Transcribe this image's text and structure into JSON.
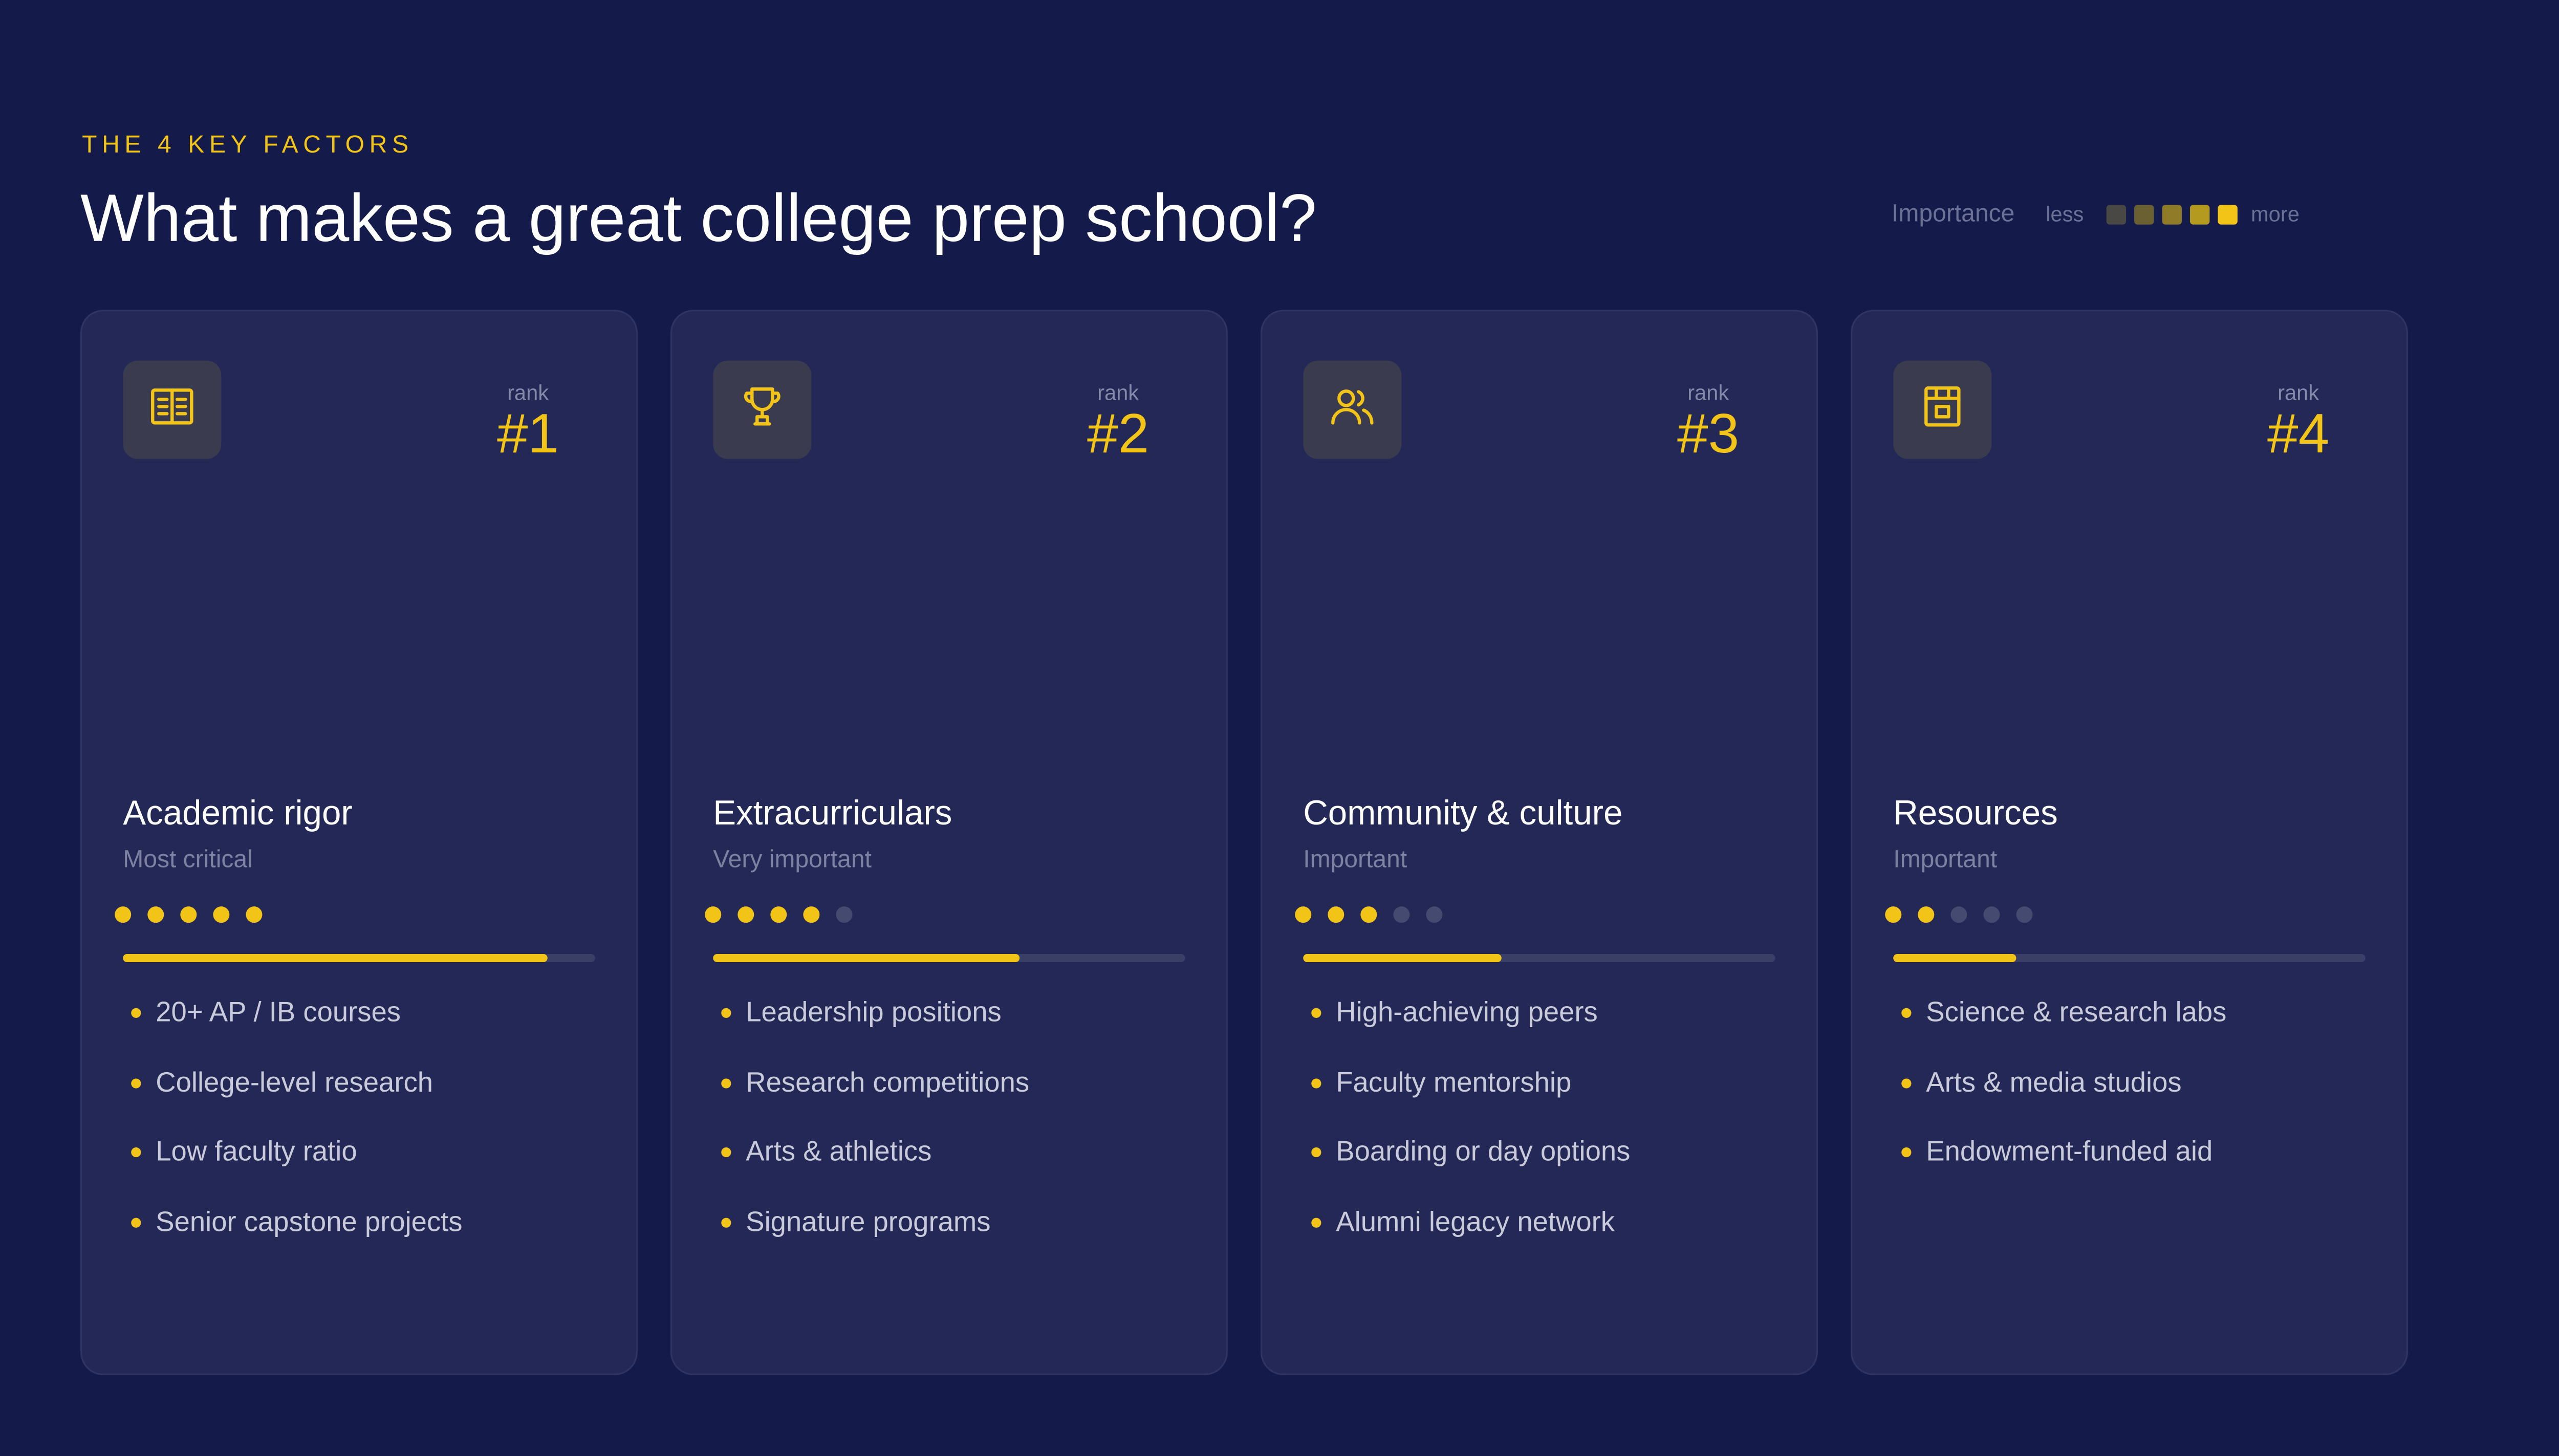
{
  "header": {
    "eyebrow": "THE 4 KEY FACTORS",
    "title": "What makes a great college prep school?"
  },
  "legend": {
    "label": "Importance",
    "less_label": "less",
    "more_label": "more",
    "swatch_colors": [
      "#4a4845",
      "#6b6032",
      "#8f7b28",
      "#b59a20",
      "#f2c417"
    ]
  },
  "colors": {
    "background": "#141b4b",
    "card": "#232856",
    "accent": "#f2c417",
    "dot_inactive": "#454a70"
  },
  "cards": [
    {
      "icon": "open-book-icon",
      "rank_label": "rank",
      "rank": "#1",
      "title": "Academic rigor",
      "subtitle": "Most critical",
      "importance": 5,
      "importance_max": 5,
      "progress": 0.9,
      "items": [
        "20+ AP / IB courses",
        "College-level research",
        "Low faculty ratio",
        "Senior capstone projects"
      ]
    },
    {
      "icon": "trophy-icon",
      "rank_label": "rank",
      "rank": "#2",
      "title": "Extracurriculars",
      "subtitle": "Very important",
      "importance": 4,
      "importance_max": 5,
      "progress": 0.65,
      "items": [
        "Leadership positions",
        "Research competitions",
        "Arts & athletics",
        "Signature programs"
      ]
    },
    {
      "icon": "users-icon",
      "rank_label": "rank",
      "rank": "#3",
      "title": "Community & culture",
      "subtitle": "Important",
      "importance": 3,
      "importance_max": 5,
      "progress": 0.42,
      "items": [
        "High-achieving peers",
        "Faculty mentorship",
        "Boarding or day options",
        "Alumni legacy network"
      ]
    },
    {
      "icon": "building-icon",
      "rank_label": "rank",
      "rank": "#4",
      "title": "Resources",
      "subtitle": "Important",
      "importance": 2,
      "importance_max": 5,
      "progress": 0.26,
      "items": [
        "Science & research labs",
        "Arts & media studios",
        "Endowment-funded aid"
      ]
    }
  ]
}
